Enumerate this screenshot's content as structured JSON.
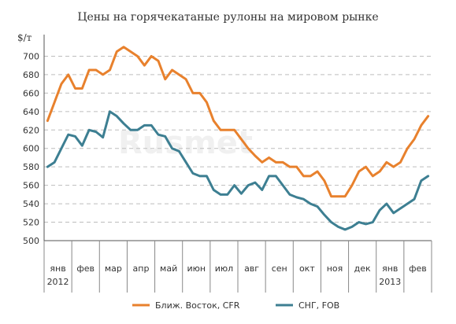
{
  "chart_data": {
    "type": "line",
    "title": "Цены на горячекатаные рулоны на мировом рынке",
    "ylabel": "$/т",
    "ylim": [
      500,
      720
    ],
    "yticks": [
      500,
      520,
      540,
      560,
      580,
      600,
      620,
      640,
      660,
      680,
      700
    ],
    "grid": true,
    "legend_position": "bottom",
    "watermark": "Rusmet",
    "months": [
      "янв",
      "фев",
      "мар",
      "апр",
      "май",
      "июн",
      "июл",
      "авг",
      "сен",
      "окт",
      "ноя",
      "дек",
      "янв",
      "фев"
    ],
    "year_labels": [
      {
        "month_index": 0,
        "text": "2012"
      },
      {
        "month_index": 12,
        "text": "2013"
      }
    ],
    "points_per_month": 4,
    "series": [
      {
        "name": "Ближ. Восток, CFR",
        "color": "#e8812d",
        "values": [
          630,
          650,
          670,
          680,
          665,
          665,
          685,
          685,
          680,
          685,
          705,
          710,
          705,
          700,
          690,
          700,
          695,
          675,
          685,
          680,
          675,
          660,
          660,
          650,
          630,
          620,
          620,
          620,
          610,
          600,
          592,
          585,
          590,
          585,
          585,
          580,
          580,
          570,
          570,
          575,
          565,
          548,
          548,
          548,
          560,
          575,
          580,
          570,
          575,
          585,
          580,
          585,
          600,
          610,
          625,
          635
        ]
      },
      {
        "name": "СНГ, FOB",
        "color": "#3d7f92",
        "values": [
          580,
          585,
          600,
          615,
          613,
          603,
          620,
          618,
          612,
          640,
          635,
          627,
          620,
          620,
          625,
          625,
          615,
          613,
          600,
          597,
          585,
          573,
          570,
          570,
          555,
          550,
          550,
          560,
          551,
          560,
          563,
          555,
          570,
          570,
          560,
          550,
          547,
          545,
          540,
          537,
          528,
          520,
          515,
          512,
          515,
          520,
          518,
          520,
          533,
          540,
          530,
          535,
          540,
          545,
          565,
          570
        ]
      }
    ]
  }
}
